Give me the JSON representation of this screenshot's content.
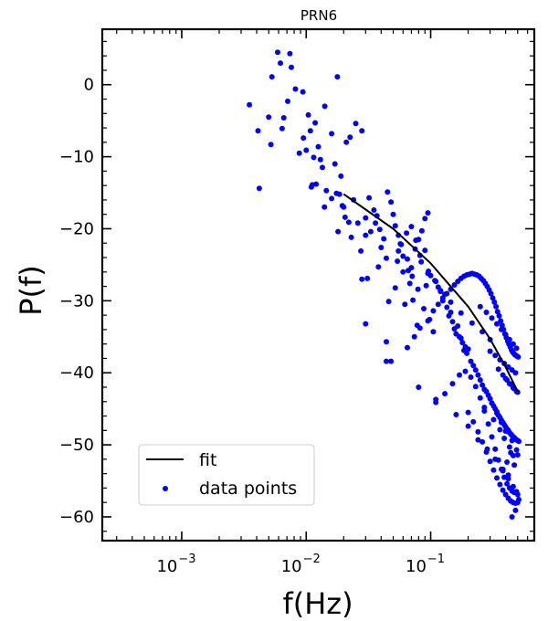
{
  "chart_data": {
    "type": "scatter",
    "title": "PRN6",
    "xlabel": "f(Hz)",
    "ylabel": "P(f)",
    "xscale": "log",
    "xlim": [
      0.00023,
      0.68
    ],
    "ylim": [
      -63.3,
      7.7
    ],
    "xticks": [
      0.001,
      0.01,
      0.1
    ],
    "xtick_labels": [
      "10",
      "10",
      "10"
    ],
    "xtick_exponents": [
      "−3",
      "−2",
      "−1"
    ],
    "yticks": [
      0,
      -10,
      -20,
      -30,
      -40,
      -50,
      -60
    ],
    "ytick_labels": [
      "0",
      "−10",
      "−20",
      "−30",
      "−40",
      "−50",
      "−60"
    ],
    "grid": false,
    "legend_position": "lower-left",
    "colors": {
      "data": "#0000ff",
      "fit": "#000000"
    },
    "series": [
      {
        "name": "fit",
        "kind": "line",
        "x": [
          0.02,
          0.05,
          0.1,
          0.2,
          0.3,
          0.4,
          0.5
        ],
        "y": [
          -15.2,
          -20.0,
          -24.8,
          -30.8,
          -35.3,
          -39.2,
          -42.6
        ]
      },
      {
        "name": "data points",
        "kind": "scatter",
        "x": [
          0.0059,
          0.0074,
          0.0053,
          0.0062,
          0.0076,
          0.0041,
          0.0071,
          0.0094,
          0.0178,
          0.0118,
          0.0141,
          0.0082,
          0.0035,
          0.005,
          0.0066,
          0.0104,
          0.0064,
          0.0088,
          0.0042,
          0.0108,
          0.016,
          0.013,
          0.017,
          0.019,
          0.014,
          0.01,
          0.0112,
          0.0125,
          0.021,
          0.0225,
          0.025,
          0.028,
          0.0095,
          0.011,
          0.0145,
          0.0175,
          0.0052,
          0.0115,
          0.012,
          0.0135,
          0.018,
          0.0205,
          0.024,
          0.026,
          0.03,
          0.033,
          0.036,
          0.04,
          0.042,
          0.044,
          0.038,
          0.031,
          0.0275,
          0.023,
          0.022,
          0.0195,
          0.0185,
          0.032,
          0.035,
          0.037,
          0.039,
          0.045,
          0.048,
          0.05,
          0.052,
          0.055,
          0.058,
          0.06,
          0.065,
          0.07,
          0.075,
          0.08,
          0.085,
          0.09,
          0.095,
          0.03,
          0.028,
          0.016,
          0.02,
          0.046,
          0.052,
          0.044,
          0.062,
          0.068,
          0.072,
          0.078,
          0.088,
          0.098,
          0.105,
          0.066,
          0.071,
          0.079,
          0.084,
          0.092,
          0.054,
          0.06,
          0.057,
          0.064,
          0.07,
          0.076,
          0.082,
          0.09,
          0.096,
          0.1,
          0.11,
          0.12,
          0.13,
          0.115,
          0.108,
          0.125,
          0.135,
          0.14,
          0.145,
          0.15,
          0.155,
          0.16,
          0.17,
          0.18,
          0.19,
          0.2,
          0.165,
          0.175,
          0.185,
          0.195,
          0.21,
          0.22,
          0.23,
          0.24,
          0.25,
          0.26,
          0.27,
          0.28,
          0.29,
          0.3,
          0.31,
          0.32,
          0.33,
          0.34,
          0.35,
          0.36,
          0.37,
          0.38,
          0.39,
          0.4,
          0.41,
          0.42,
          0.43,
          0.44,
          0.45,
          0.46,
          0.47,
          0.48,
          0.49,
          0.5,
          0.51,
          0.048,
          0.065,
          0.074,
          0.082,
          0.095,
          0.105,
          0.115,
          0.125,
          0.135,
          0.145,
          0.155,
          0.165,
          0.175,
          0.185,
          0.195,
          0.205,
          0.215,
          0.225,
          0.235,
          0.245,
          0.255,
          0.265,
          0.275,
          0.285,
          0.295,
          0.305,
          0.315,
          0.325,
          0.335,
          0.345,
          0.355,
          0.365,
          0.375,
          0.385,
          0.395,
          0.405,
          0.415,
          0.425,
          0.435,
          0.445,
          0.455,
          0.465,
          0.475,
          0.485,
          0.495,
          0.505,
          0.11,
          0.13,
          0.15,
          0.17,
          0.19,
          0.21,
          0.23,
          0.25,
          0.27,
          0.29,
          0.31,
          0.33,
          0.35,
          0.37,
          0.39,
          0.41,
          0.43,
          0.45,
          0.47,
          0.49,
          0.2,
          0.22,
          0.24,
          0.26,
          0.28,
          0.3,
          0.32,
          0.34,
          0.36,
          0.38,
          0.4,
          0.42,
          0.44,
          0.46,
          0.48,
          0.5,
          0.25,
          0.28,
          0.31,
          0.34,
          0.37,
          0.4,
          0.43,
          0.46,
          0.49,
          0.3,
          0.33,
          0.36,
          0.39,
          0.42,
          0.45,
          0.48,
          0.35,
          0.38,
          0.41,
          0.44,
          0.47,
          0.5,
          0.4,
          0.43,
          0.46,
          0.49,
          0.45,
          0.48,
          0.51,
          0.42,
          0.47,
          0.5,
          0.38,
          0.41,
          0.44,
          0.27,
          0.32,
          0.36,
          0.39,
          0.43,
          0.46,
          0.31,
          0.34,
          0.37,
          0.4,
          0.45,
          0.49,
          0.03,
          0.055,
          0.095,
          0.12,
          0.145,
          0.175,
          0.215,
          0.26,
          0.3,
          0.044,
          0.08,
          0.11,
          0.16,
          0.2,
          0.24,
          0.285,
          0.33,
          0.38,
          0.42,
          0.46,
          0.5
        ],
        "y": [
          4.5,
          4.3,
          1.1,
          3.0,
          2.4,
          -6.4,
          -2.3,
          -1.0,
          1.1,
          -5.3,
          -3.0,
          -0.6,
          -2.8,
          -4.5,
          -4.6,
          -4.2,
          -6.1,
          -9.5,
          -14.4,
          -6.4,
          -6.8,
          -10.4,
          -11.0,
          -12.7,
          -17.0,
          -9.1,
          -13.9,
          -8.6,
          -8.0,
          -7.3,
          -5.4,
          -6.4,
          -7.4,
          -14.2,
          -14.7,
          -15.1,
          -8.3,
          -10.1,
          -13.8,
          -11.5,
          -20.4,
          -18.4,
          -16.0,
          -19.2,
          -18.5,
          -20.4,
          -19.2,
          -22.6,
          -21.4,
          -24.1,
          -25.3,
          -26.9,
          -23.1,
          -21.2,
          -19.1,
          -16.8,
          -15.2,
          -15.7,
          -17.4,
          -18.2,
          -20.1,
          -14.9,
          -16.3,
          -18.0,
          -19.6,
          -20.9,
          -22.2,
          -23.8,
          -24.2,
          -25.4,
          -22.8,
          -21.5,
          -20.3,
          -18.6,
          -17.8,
          -33.2,
          -27.0,
          -15.8,
          -17.0,
          -30.1,
          -28.2,
          -35.7,
          -30.5,
          -27.6,
          -29.9,
          -33.4,
          -31.1,
          -32.6,
          -34.3,
          -25.8,
          -26.6,
          -28.4,
          -24.6,
          -27.9,
          -24.5,
          -26.0,
          -22.1,
          -20.6,
          -19.7,
          -21.6,
          -23.7,
          -23.0,
          -25.9,
          -26.5,
          -27.3,
          -28.6,
          -29.1,
          -28.1,
          -27.2,
          -30.0,
          -30.9,
          -32.1,
          -31.6,
          -32.9,
          -33.9,
          -34.6,
          -35.0,
          -35.8,
          -36.4,
          -36.7,
          -33.5,
          -35.2,
          -36.9,
          -37.3,
          -38.4,
          -39.0,
          -39.6,
          -40.3,
          -41.0,
          -41.7,
          -42.3,
          -42.6,
          -43.1,
          -43.6,
          -44.2,
          -44.6,
          -45.0,
          -45.4,
          -45.9,
          -46.2,
          -46.6,
          -46.9,
          -47.2,
          -47.5,
          -47.8,
          -48.0,
          -48.3,
          -48.5,
          -48.7,
          -48.9,
          -49.0,
          -49.2,
          -49.3,
          -49.4,
          -49.5,
          -38.4,
          -36.5,
          -35.0,
          -33.8,
          -32.8,
          -31.4,
          -30.5,
          -29.6,
          -29.0,
          -28.4,
          -27.8,
          -27.3,
          -26.9,
          -26.6,
          -26.4,
          -26.3,
          -26.2,
          -26.3,
          -26.4,
          -26.6,
          -26.9,
          -27.2,
          -27.6,
          -28.0,
          -28.5,
          -29.0,
          -29.6,
          -30.2,
          -30.8,
          -31.5,
          -32.1,
          -32.8,
          -33.4,
          -34.0,
          -34.6,
          -35.1,
          -35.6,
          -36.0,
          -36.4,
          -36.8,
          -37.1,
          -37.3,
          -37.5,
          -37.6,
          -37.7,
          -37.8,
          -43.7,
          -42.9,
          -41.5,
          -40.3,
          -39.8,
          -40.6,
          -41.9,
          -43.5,
          -45.3,
          -47.1,
          -48.9,
          -50.6,
          -52.1,
          -53.4,
          -54.5,
          -55.4,
          -56.0,
          -56.4,
          -56.6,
          -56.5,
          -45.5,
          -46.8,
          -48.2,
          -49.6,
          -51.0,
          -52.3,
          -53.5,
          -54.6,
          -55.5,
          -56.3,
          -56.9,
          -57.4,
          -57.8,
          -58.0,
          -58.1,
          -58.0,
          -30.8,
          -31.6,
          -32.4,
          -33.2,
          -34.0,
          -34.7,
          -35.4,
          -36.0,
          -36.6,
          -37.0,
          -37.6,
          -38.2,
          -38.7,
          -39.2,
          -39.6,
          -40.0,
          -39.5,
          -40.3,
          -41.0,
          -41.6,
          -42.2,
          -42.7,
          -40.8,
          -41.5,
          -42.1,
          -42.6,
          -60.0,
          -59.1,
          -57.6,
          -54.2,
          -52.8,
          -51.4,
          -53.6,
          -52.4,
          -51.1,
          -44.8,
          -46.5,
          -47.9,
          -49.1,
          -50.3,
          -51.5,
          -44.2,
          -45.6,
          -46.9,
          -48.1,
          -49.4,
          -50.7,
          -20.9,
          -23.1,
          -26.2,
          -28.7,
          -30.2,
          -31.7,
          -33.1,
          -34.3,
          -35.4,
          -38.4,
          -42.0,
          -44.1,
          -45.8,
          -47.4,
          -49.3,
          -50.6,
          -52.0,
          -53.4,
          -54.7,
          -55.8,
          -56.9
        ]
      }
    ]
  }
}
